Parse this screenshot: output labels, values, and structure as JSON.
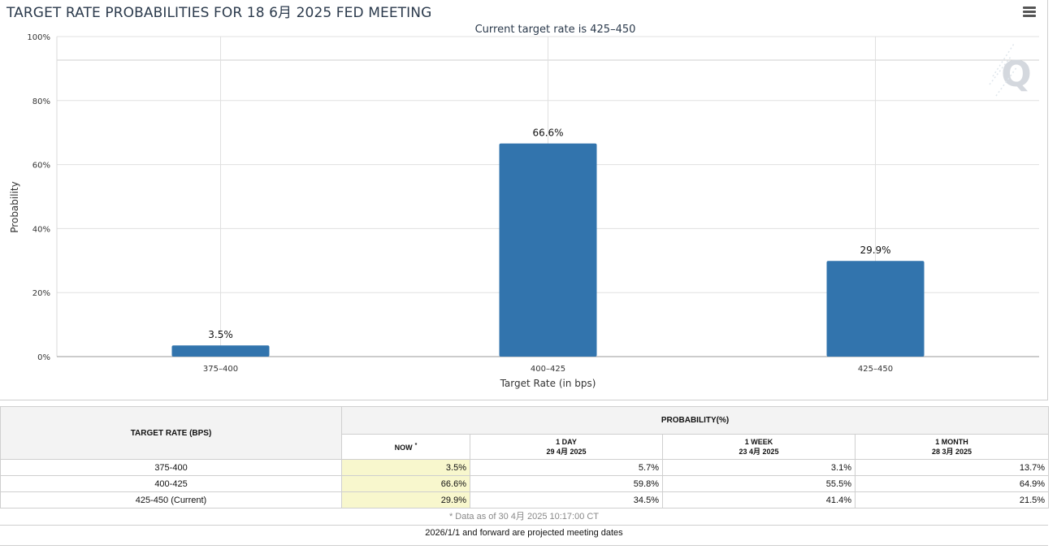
{
  "chart_data": {
    "type": "bar",
    "title": "TARGET RATE PROBABILITIES FOR 18 6月 2025 FED MEETING",
    "subtitle": "Current target rate is 425–450",
    "xlabel": "Target Rate (in bps)",
    "ylabel": "Probability",
    "categories": [
      "375–400",
      "400–425",
      "425–450"
    ],
    "values": [
      3.5,
      66.6,
      29.9
    ],
    "value_labels": [
      "3.5%",
      "66.6%",
      "29.9%"
    ],
    "ylim": [
      0,
      100
    ],
    "yticks": [
      0,
      20,
      40,
      60,
      80,
      100
    ],
    "ytick_labels": [
      "0%",
      "20%",
      "40%",
      "60%",
      "80%",
      "100%"
    ],
    "bar_color": "#3274ad",
    "grid": true
  },
  "menu": {
    "icon": "hamburger-menu-icon"
  },
  "watermark": {
    "letter": "Q"
  },
  "table": {
    "header_rate": "TARGET RATE (BPS)",
    "header_probability": "PROBABILITY(%)",
    "columns": [
      {
        "label": "NOW",
        "sub": "",
        "marker": "*"
      },
      {
        "label": "1 DAY",
        "sub": "29 4月 2025"
      },
      {
        "label": "1 WEEK",
        "sub": "23 4月 2025"
      },
      {
        "label": "1 MONTH",
        "sub": "28 3月 2025"
      }
    ],
    "rows": [
      {
        "rate": "375-400",
        "now": "3.5%",
        "day": "5.7%",
        "week": "3.1%",
        "month": "13.7%"
      },
      {
        "rate": "400-425",
        "now": "66.6%",
        "day": "59.8%",
        "week": "55.5%",
        "month": "64.9%"
      },
      {
        "rate": "425-450 (Current)",
        "now": "29.9%",
        "day": "34.5%",
        "week": "41.4%",
        "month": "21.5%"
      }
    ],
    "data_note": "* Data as of 30 4月 2025 10:17:00 CT",
    "footnote": "2026/1/1 and forward are projected meeting dates"
  }
}
